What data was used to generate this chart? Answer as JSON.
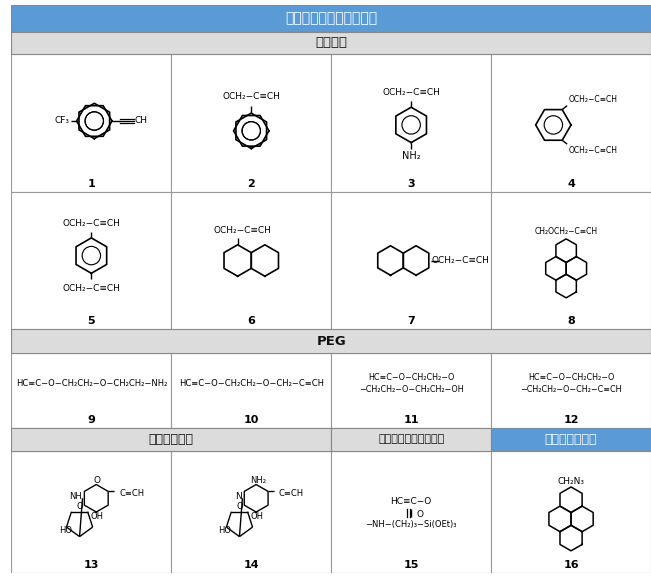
{
  "title": "末端アセチレンブロック",
  "section_aryl": "アリール",
  "section_peg": "PEG",
  "section_nucleoside": "ヌクレオシド",
  "section_silane": "シランカップリング剤",
  "section_azide": "アジドブロック",
  "header_bg": "#5B9BD5",
  "header_fg": "#FFFFFF",
  "subheader_bg": "#E8E8E8",
  "subheader_fg": "#000000",
  "azide_bg": "#5B9BD5",
  "azide_fg": "#FFFFFF",
  "cell_bg": "#FFFFFF",
  "border_color": "#999999",
  "fig_width": 6.51,
  "fig_height": 5.78,
  "dpi": 100
}
